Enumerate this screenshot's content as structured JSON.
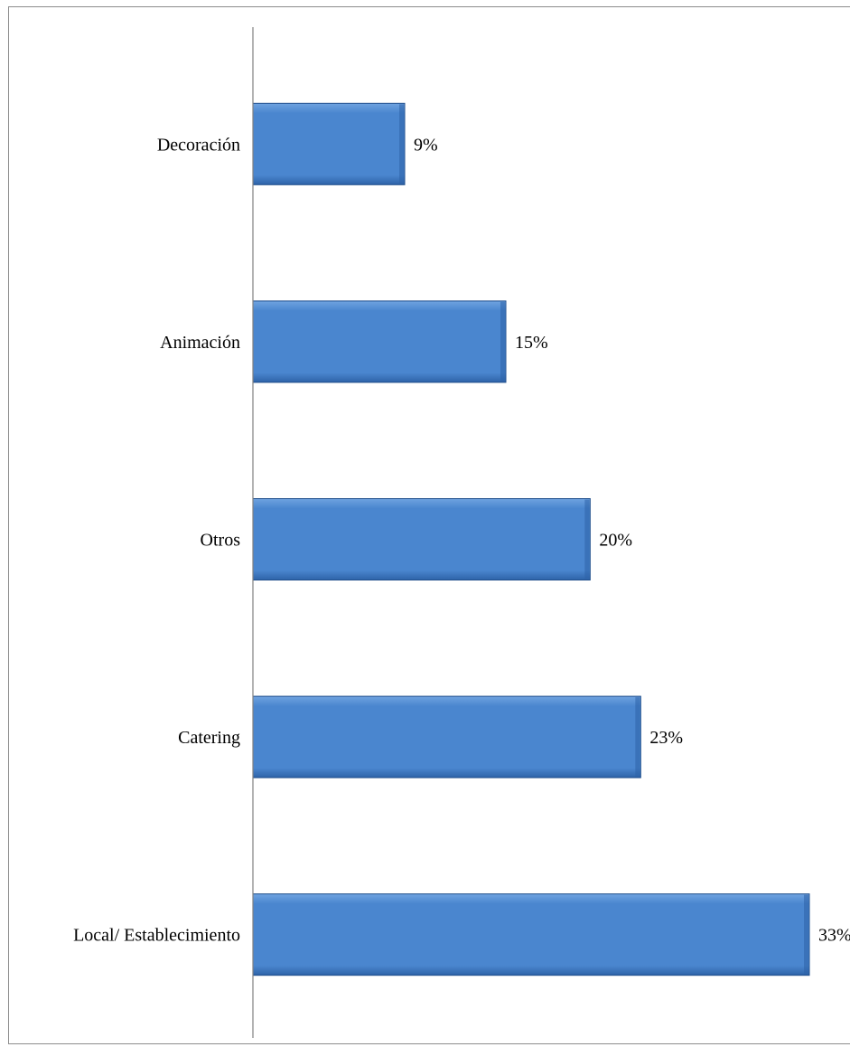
{
  "chart_data": {
    "type": "bar",
    "orientation": "horizontal",
    "categories": [
      "Decoración",
      "Animación",
      "Otros",
      "Catering",
      "Local/ Establecimiento"
    ],
    "values": [
      9,
      15,
      20,
      23,
      33
    ],
    "value_labels": [
      "9%",
      "15%",
      "20%",
      "23%",
      "33%"
    ],
    "xlim": [
      0,
      33
    ],
    "grid": false,
    "legend": "none",
    "colors": {
      "bar_fill": "#4a86cf",
      "bar_fill_light": "#6fa3e0",
      "bar_fill_dark": "#2e63a8",
      "bar_edge": "#1f4e8c",
      "axis": "#808080"
    }
  }
}
